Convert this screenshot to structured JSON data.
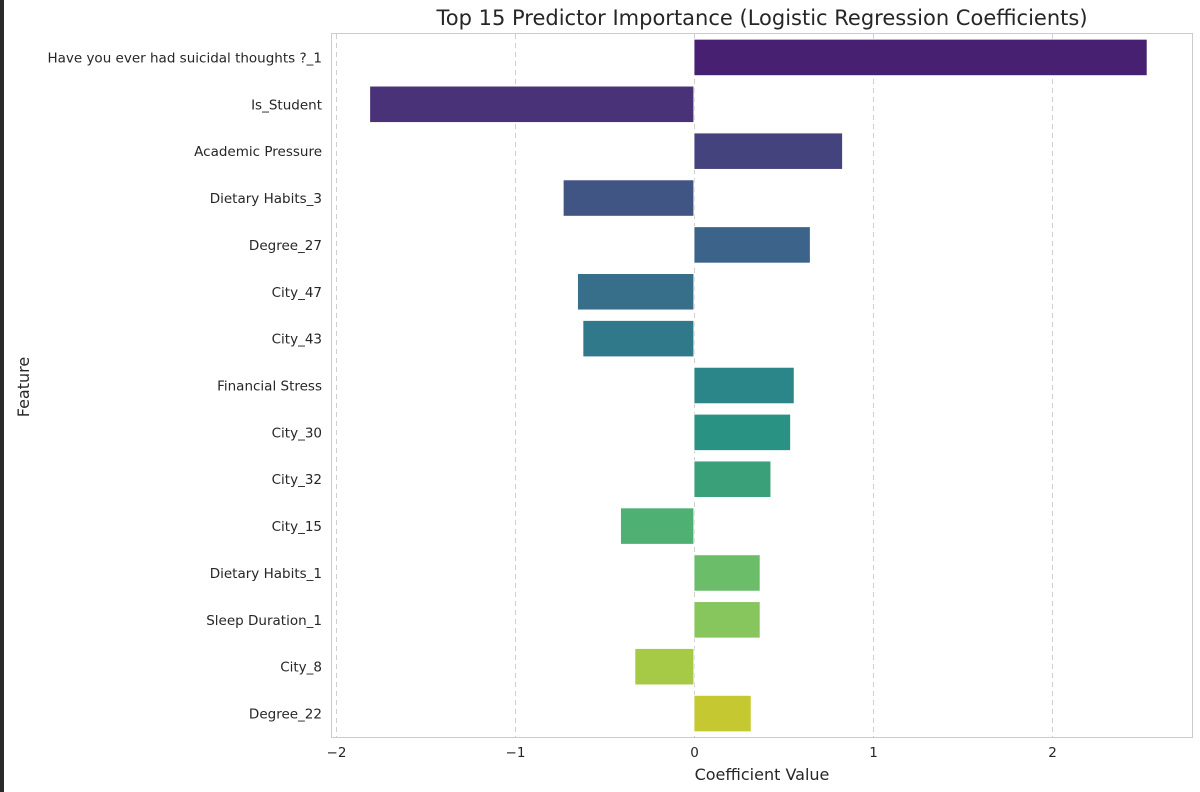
{
  "chart_data": {
    "type": "bar",
    "orientation": "horizontal",
    "title": "Top 15 Predictor Importance (Logistic Regression Coefficients)",
    "xlabel": "Coefficient Value",
    "ylabel": "Feature",
    "xlim": [
      -2.02,
      2.78
    ],
    "xticks": [
      -2,
      -1,
      0,
      1,
      2
    ],
    "xtick_labels": [
      "−2",
      "−1",
      "0",
      "1",
      "2"
    ],
    "grid": true,
    "palette": "viridis",
    "categories": [
      "Have you ever had suicidal thoughts ?_1",
      "Is_Student",
      "Academic Pressure",
      "Dietary Habits_3",
      "Degree_27",
      "City_47",
      "City_43",
      "Financial Stress",
      "City_30",
      "City_32",
      "City_15",
      "Dietary Habits_1",
      "Sleep Duration_1",
      "City_8",
      "Degree_22"
    ],
    "values": [
      2.53,
      -1.81,
      0.83,
      -0.73,
      0.65,
      -0.65,
      -0.62,
      0.56,
      0.54,
      0.43,
      -0.41,
      0.37,
      0.37,
      -0.33,
      0.32
    ],
    "colors": [
      "#482071",
      "#4a3278",
      "#45437e",
      "#415584",
      "#3c6389",
      "#376f8a",
      "#30798a",
      "#2b8689",
      "#2a9282",
      "#3aa07a",
      "#4fb073",
      "#6bbd6a",
      "#87c55d",
      "#a6ca45",
      "#c5c831"
    ]
  }
}
